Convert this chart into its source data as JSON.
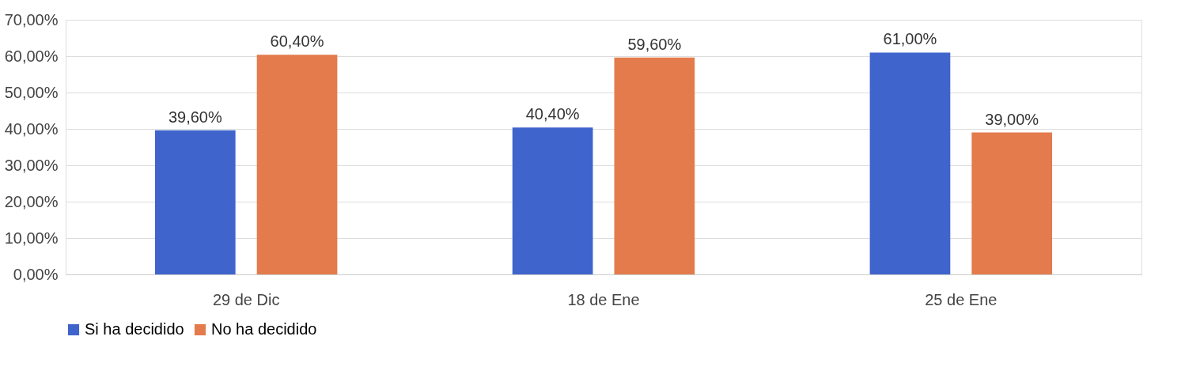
{
  "chart_data": {
    "type": "bar",
    "categories": [
      "29 de Dic",
      "18 de Ene",
      "25 de Ene"
    ],
    "series": [
      {
        "name": "Si ha decidido",
        "color": "#3f64cc",
        "values": [
          39.6,
          40.4,
          61.0
        ],
        "value_labels": [
          "39,60%",
          "40,40%",
          "61,00%"
        ]
      },
      {
        "name": "No ha decidido",
        "color": "#e37b4c",
        "values": [
          60.4,
          59.6,
          39.0
        ],
        "value_labels": [
          "60,40%",
          "59,60%",
          "39,00%"
        ]
      }
    ],
    "ylim": [
      0,
      70
    ],
    "yticks": [
      {
        "value": 0,
        "label": "0,00%"
      },
      {
        "value": 10,
        "label": "10,00%"
      },
      {
        "value": 20,
        "label": "20,00%"
      },
      {
        "value": 30,
        "label": "30,00%"
      },
      {
        "value": 40,
        "label": "40,00%"
      },
      {
        "value": 50,
        "label": "50,00%"
      },
      {
        "value": 60,
        "label": "60,00%"
      },
      {
        "value": 70,
        "label": "70,00%"
      }
    ],
    "grid": "y",
    "legend": "bottom"
  }
}
